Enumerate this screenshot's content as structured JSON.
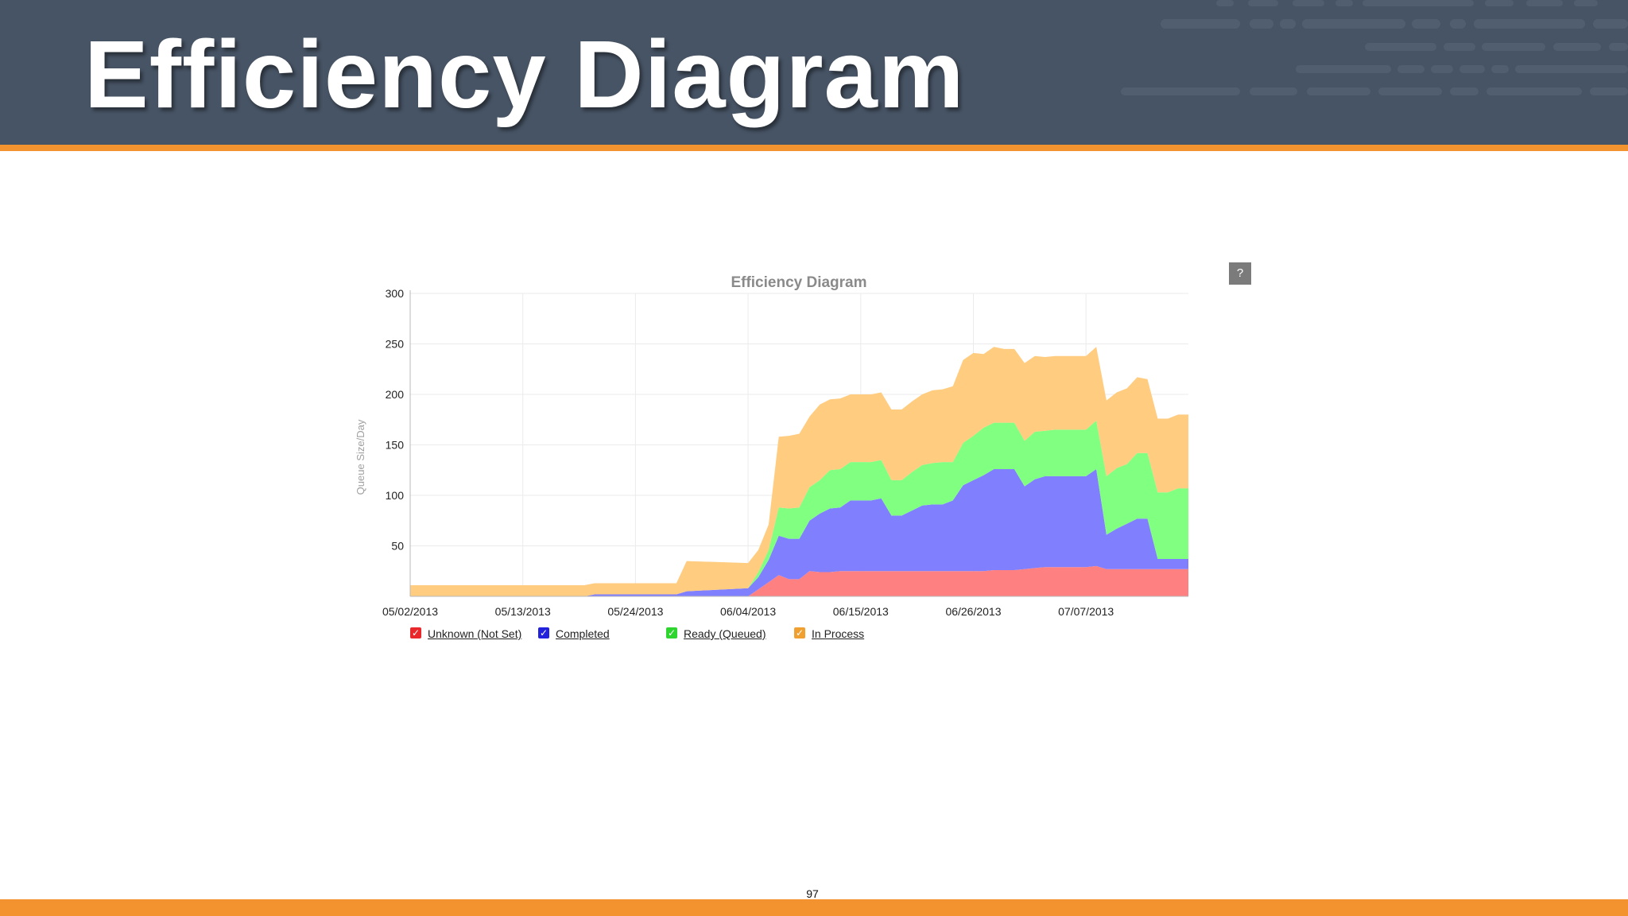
{
  "slide": {
    "title": "Efficiency Diagram",
    "page_number": "97"
  },
  "help_button": {
    "label": "?"
  },
  "colors": {
    "header_bg": "#475465",
    "accent": "#f29330",
    "unknown": "#ff8080",
    "completed": "#8080ff",
    "ready": "#80ff80",
    "in_process": "#ffcc80",
    "legend_unknown": "#e8282a",
    "legend_completed": "#2222dd",
    "legend_ready": "#2ed52e",
    "legend_in_process": "#f0a030"
  },
  "legend": {
    "items": [
      {
        "label": "Unknown (Not Set)",
        "color": "#e8282a",
        "checked": true
      },
      {
        "label": "Completed",
        "color": "#2222dd",
        "checked": true
      },
      {
        "label": "Ready (Queued)",
        "color": "#2ed52e",
        "checked": true
      },
      {
        "label": "In Process",
        "color": "#f0a030",
        "checked": true
      }
    ]
  },
  "chart_data": {
    "type": "area",
    "stacked": true,
    "title": "Efficiency Diagram",
    "xlabel": "",
    "ylabel": "Queue Size/Day",
    "ylim": [
      0,
      300
    ],
    "y_ticks": [
      "50",
      "100",
      "150",
      "200",
      "250",
      "300"
    ],
    "x_tick_labels": [
      "05/02/2013",
      "05/13/2013",
      "05/24/2013",
      "06/04/2013",
      "06/15/2013",
      "06/26/2013",
      "07/07/2013"
    ],
    "x_tick_days": [
      0,
      11,
      22,
      33,
      44,
      55,
      66
    ],
    "x_range_days": [
      0,
      76
    ],
    "grid": true,
    "legend_position": "bottom-left",
    "x": [
      0,
      17,
      18,
      26,
      27,
      33,
      34,
      35,
      36,
      37,
      38,
      39,
      40,
      41,
      42,
      43,
      44,
      45,
      46,
      47,
      48,
      49,
      50,
      51,
      52,
      53,
      54,
      55,
      56,
      57,
      58,
      59,
      60,
      61,
      62,
      63,
      64,
      65,
      66,
      67,
      68,
      69,
      70,
      71,
      72,
      73,
      74,
      75,
      76
    ],
    "series": [
      {
        "name": "Unknown (Not Set)",
        "color": "#ff8080",
        "values": [
          0,
          0,
          0,
          0,
          0,
          0,
          7,
          14,
          21,
          17,
          17,
          25,
          24,
          24,
          25,
          25,
          25,
          25,
          25,
          25,
          25,
          25,
          25,
          25,
          25,
          25,
          25,
          25,
          25,
          26,
          26,
          26,
          27,
          28,
          29,
          29,
          29,
          29,
          29,
          30,
          27,
          27,
          27,
          27,
          27,
          27,
          27,
          27,
          27
        ]
      },
      {
        "name": "Completed",
        "color": "#8080ff",
        "values": [
          0,
          0,
          2,
          2,
          5,
          8,
          12,
          22,
          39,
          40,
          40,
          50,
          58,
          63,
          63,
          70,
          70,
          70,
          72,
          55,
          55,
          60,
          65,
          66,
          66,
          70,
          85,
          90,
          95,
          100,
          100,
          100,
          82,
          88,
          90,
          90,
          90,
          90,
          90,
          96,
          34,
          40,
          45,
          50,
          50,
          10,
          10,
          10,
          10
        ]
      },
      {
        "name": "Ready (Queued)",
        "color": "#80ff80",
        "values": [
          0,
          0,
          0,
          0,
          0,
          0,
          5,
          10,
          28,
          30,
          31,
          33,
          33,
          38,
          38,
          38,
          38,
          38,
          38,
          35,
          35,
          38,
          40,
          41,
          42,
          38,
          42,
          44,
          47,
          46,
          46,
          46,
          45,
          47,
          45,
          46,
          46,
          46,
          46,
          48,
          58,
          60,
          59,
          65,
          65,
          66,
          66,
          70,
          70
        ]
      },
      {
        "name": "In Process",
        "color": "#ffcc80",
        "values": [
          11,
          11,
          11,
          11,
          30,
          25,
          22,
          25,
          70,
          72,
          73,
          70,
          75,
          70,
          70,
          67,
          67,
          67,
          67,
          70,
          70,
          70,
          70,
          72,
          72,
          75,
          82,
          82,
          73,
          75,
          73,
          73,
          77,
          75,
          73,
          73,
          73,
          73,
          73,
          73,
          75,
          75,
          75,
          75,
          73,
          73,
          73,
          73,
          73
        ]
      }
    ]
  }
}
